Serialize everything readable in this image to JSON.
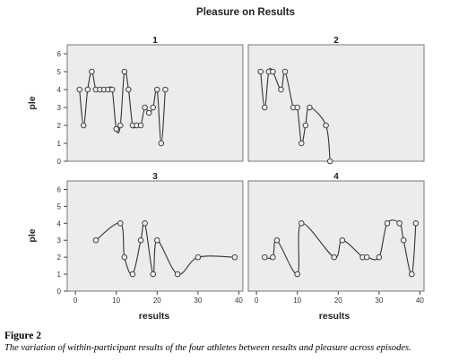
{
  "figure": {
    "title": "Pleasure on Results",
    "x_label": "results",
    "y_label": "ple",
    "caption_label": "Figure 2",
    "caption_text": "The variation of within-participant results of the four athletes between results and pleasure across episodes."
  },
  "colors": {
    "panel_bg": "#ececec",
    "line": "#333333",
    "frame": "#777777"
  },
  "chart_data": [
    {
      "type": "scatter",
      "title": "1",
      "xlabel": "",
      "ylabel": "ple",
      "xlim": [
        -2,
        41
      ],
      "ylim": [
        0,
        6.5
      ],
      "x_ticks": [],
      "y_ticks": [
        0,
        1,
        2,
        3,
        4,
        5,
        6
      ],
      "x_tick_labels": [],
      "grid": false,
      "points": [
        [
          1,
          4
        ],
        [
          2,
          2
        ],
        [
          3,
          4
        ],
        [
          4,
          5
        ],
        [
          5,
          4
        ],
        [
          6,
          4
        ],
        [
          7,
          4
        ],
        [
          8,
          4
        ],
        [
          9,
          4
        ],
        [
          10,
          1.8
        ],
        [
          11,
          2
        ],
        [
          12,
          5
        ],
        [
          13,
          4
        ],
        [
          14,
          2
        ],
        [
          15,
          2
        ],
        [
          16,
          2
        ],
        [
          17,
          3
        ],
        [
          18,
          2.7
        ],
        [
          19,
          3
        ],
        [
          20,
          4
        ],
        [
          21,
          1
        ],
        [
          22,
          4
        ]
      ]
    },
    {
      "type": "scatter",
      "title": "2",
      "xlabel": "",
      "ylabel": "",
      "xlim": [
        -2,
        41
      ],
      "ylim": [
        0,
        6.5
      ],
      "x_ticks": [],
      "y_ticks": [],
      "x_tick_labels": [],
      "grid": false,
      "points": [
        [
          1,
          5
        ],
        [
          2,
          3
        ],
        [
          3,
          5
        ],
        [
          4,
          5
        ],
        [
          6,
          4
        ],
        [
          7,
          5
        ],
        [
          9,
          3
        ],
        [
          10,
          3
        ],
        [
          11,
          1
        ],
        [
          12,
          2
        ],
        [
          13,
          3
        ],
        [
          17,
          2
        ],
        [
          18,
          0
        ]
      ]
    },
    {
      "type": "scatter",
      "title": "3",
      "xlabel": "results",
      "ylabel": "ple",
      "xlim": [
        -2,
        41
      ],
      "ylim": [
        0,
        6.5
      ],
      "x_ticks": [
        0,
        10,
        20,
        30,
        40
      ],
      "y_ticks": [
        0,
        1,
        2,
        3,
        4,
        5,
        6
      ],
      "x_tick_labels": [
        "0",
        "10",
        "20",
        "30",
        "40"
      ],
      "grid": false,
      "points": [
        [
          5,
          3
        ],
        [
          11,
          4
        ],
        [
          12,
          2
        ],
        [
          14,
          1
        ],
        [
          16,
          3
        ],
        [
          17,
          4
        ],
        [
          19,
          1
        ],
        [
          20,
          3
        ],
        [
          25,
          1
        ],
        [
          30,
          2
        ],
        [
          39,
          2
        ]
      ]
    },
    {
      "type": "scatter",
      "title": "4",
      "xlabel": "results",
      "ylabel": "",
      "xlim": [
        -2,
        41
      ],
      "ylim": [
        0,
        6.5
      ],
      "x_ticks": [
        0,
        10,
        20,
        30,
        40
      ],
      "y_ticks": [],
      "x_tick_labels": [
        "0",
        "10",
        "20",
        "30",
        "40"
      ],
      "grid": false,
      "points": [
        [
          2,
          2
        ],
        [
          4,
          2
        ],
        [
          5,
          3
        ],
        [
          10,
          1
        ],
        [
          11,
          4
        ],
        [
          19,
          2
        ],
        [
          21,
          3
        ],
        [
          26,
          2
        ],
        [
          27,
          2
        ],
        [
          30,
          2
        ],
        [
          32,
          4
        ],
        [
          35,
          4
        ],
        [
          36,
          3
        ],
        [
          38,
          1
        ],
        [
          39,
          4
        ]
      ]
    }
  ]
}
